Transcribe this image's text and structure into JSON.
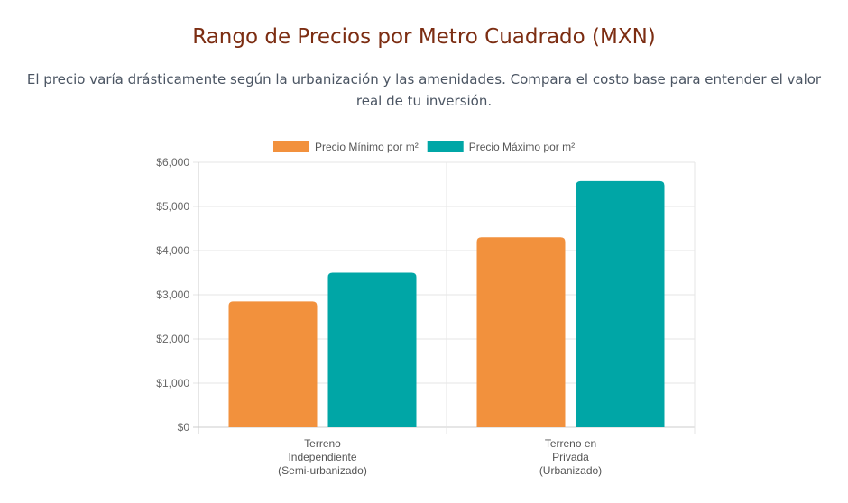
{
  "header": {
    "title": "Rango de Precios por Metro Cuadrado (MXN)",
    "subtitle": "El precio varía drásticamente según la urbanización y las amenidades. Compara el costo base para entender el valor real de tu inversión."
  },
  "chart_data": {
    "type": "bar",
    "title": "",
    "xlabel": "",
    "ylabel": "",
    "categories": [
      [
        "Terreno",
        "Independiente",
        "(Semi-urbanizado)"
      ],
      [
        "Terreno en",
        "Privada",
        "(Urbanizado)"
      ]
    ],
    "series": [
      {
        "name": "Precio Mínimo por m²",
        "color": "#f2913d",
        "values": [
          2850,
          4300
        ]
      },
      {
        "name": "Precio Máximo por m²",
        "color": "#00a6a6",
        "values": [
          3500,
          5575
        ]
      }
    ],
    "ylim": [
      0,
      6000
    ],
    "yticks": [
      0,
      1000,
      2000,
      3000,
      4000,
      5000,
      6000
    ],
    "ytick_labels": [
      "$0",
      "$1,000",
      "$2,000",
      "$3,000",
      "$4,000",
      "$5,000",
      "$6,000"
    ],
    "grid": true,
    "legend": "top-center"
  }
}
